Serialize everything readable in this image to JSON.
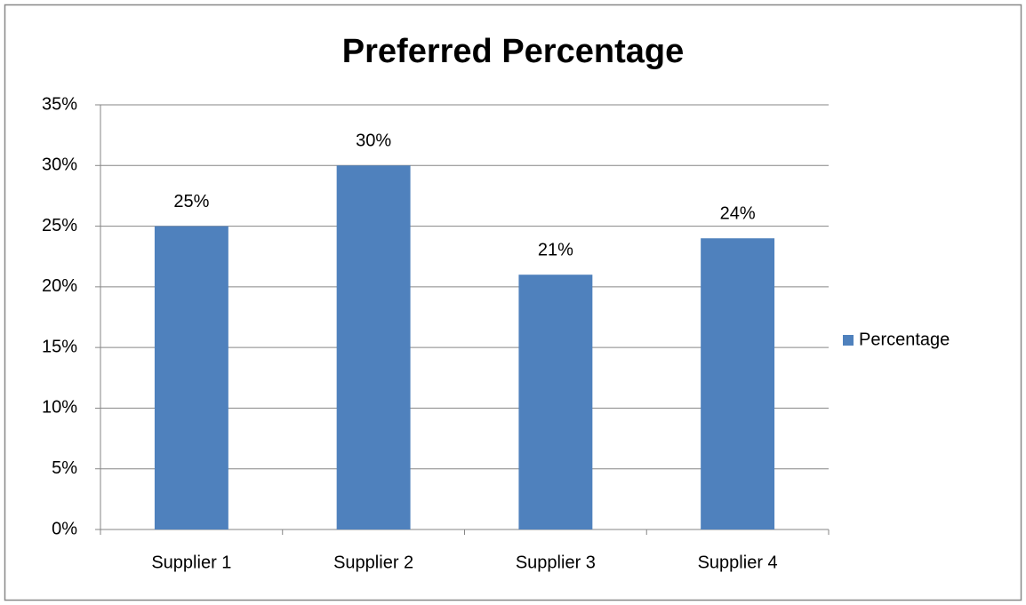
{
  "chart_data": {
    "type": "bar",
    "title": "Preferred Percentage",
    "categories": [
      "Supplier 1",
      "Supplier 2",
      "Supplier 3",
      "Supplier 4"
    ],
    "series": [
      {
        "name": "Percentage",
        "color": "#4f81bd",
        "values": [
          25,
          30,
          21,
          24
        ],
        "value_labels": [
          "25%",
          "30%",
          "21%",
          "24%"
        ]
      }
    ],
    "ylim": [
      0,
      35
    ],
    "yticks": [
      {
        "value": 0,
        "label": "0%"
      },
      {
        "value": 5,
        "label": "5%"
      },
      {
        "value": 10,
        "label": "10%"
      },
      {
        "value": 15,
        "label": "15%"
      },
      {
        "value": 20,
        "label": "20%"
      },
      {
        "value": 25,
        "label": "25%"
      },
      {
        "value": 30,
        "label": "30%"
      },
      {
        "value": 35,
        "label": "35%"
      }
    ],
    "grid": true,
    "legend": "right"
  }
}
